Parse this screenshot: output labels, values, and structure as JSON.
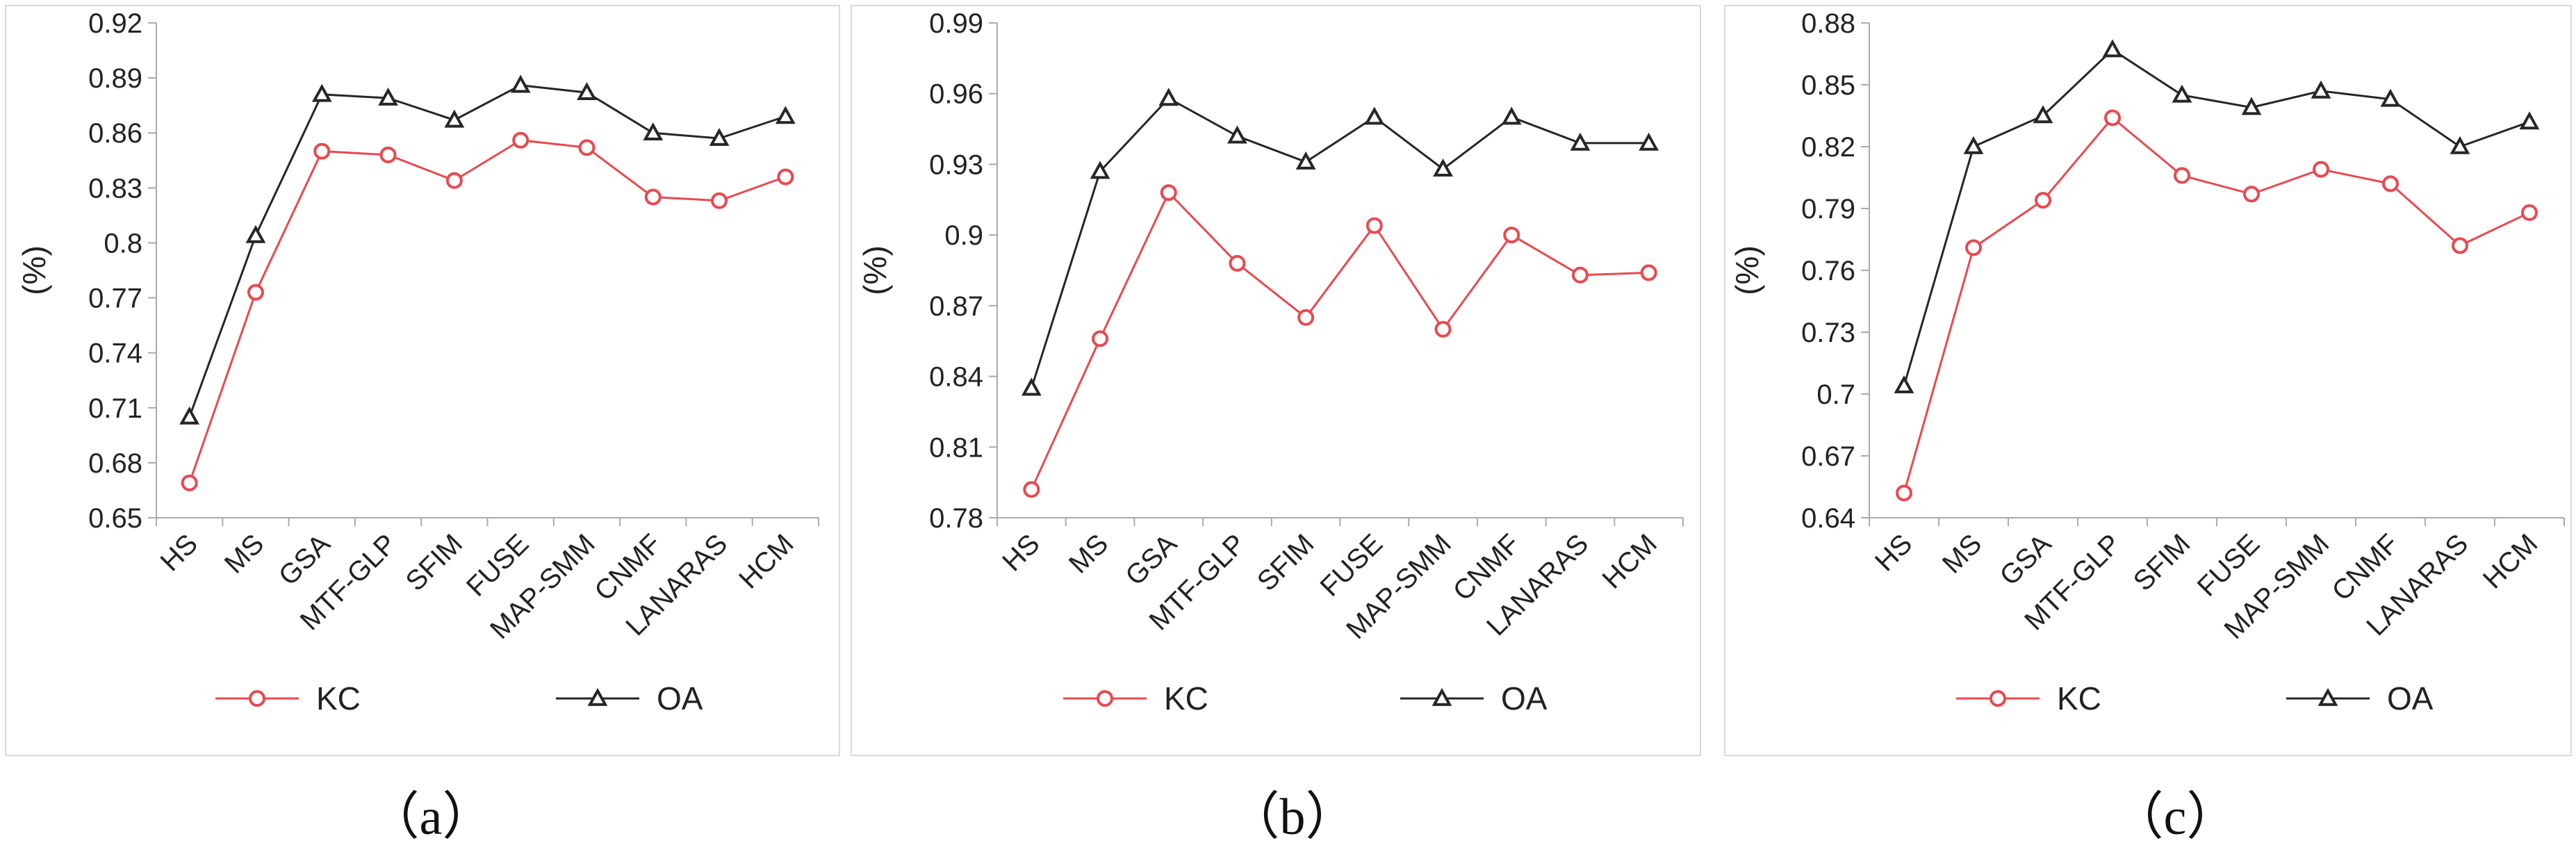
{
  "colors": {
    "KC": "#e8494f",
    "OA": "#262626",
    "axis": "#aaaaaa",
    "border": "#d9d9d9"
  },
  "chart_data": [
    {
      "type": "line",
      "caption": "（a）",
      "ylabel": "(%)",
      "xlabel": "",
      "categories": [
        "HS",
        "MS",
        "GSA",
        "MTF-GLP",
        "SFIM",
        "FUSE",
        "MAP-SMM",
        "CNMF",
        "LANARAS",
        "HCM"
      ],
      "ylim": [
        0.65,
        0.92
      ],
      "yticks": [
        0.65,
        0.68,
        0.71,
        0.74,
        0.77,
        0.8,
        0.83,
        0.86,
        0.89,
        0.92
      ],
      "ytick_labels": [
        "0.65",
        "0.68",
        "0.71",
        "0.74",
        "0.77",
        "0.8",
        "0.83",
        "0.86",
        "0.89",
        "0.92"
      ],
      "series": [
        {
          "name": "KC",
          "marker": "circle",
          "values": [
            0.669,
            0.773,
            0.85,
            0.848,
            0.834,
            0.856,
            0.852,
            0.825,
            0.823,
            0.836
          ]
        },
        {
          "name": "OA",
          "marker": "triangle",
          "values": [
            0.705,
            0.804,
            0.881,
            0.879,
            0.867,
            0.886,
            0.882,
            0.86,
            0.857,
            0.869
          ]
        }
      ]
    },
    {
      "type": "line",
      "caption": "（b）",
      "ylabel": "(%)",
      "xlabel": "",
      "categories": [
        "HS",
        "MS",
        "GSA",
        "MTF-GLP",
        "SFIM",
        "FUSE",
        "MAP-SMM",
        "CNMF",
        "LANARAS",
        "HCM"
      ],
      "ylim": [
        0.78,
        0.99
      ],
      "yticks": [
        0.78,
        0.81,
        0.84,
        0.87,
        0.9,
        0.93,
        0.96,
        0.99
      ],
      "ytick_labels": [
        "0.78",
        "0.81",
        "0.84",
        "0.87",
        "0.9",
        "0.93",
        "0.96",
        "0.99"
      ],
      "series": [
        {
          "name": "KC",
          "marker": "circle",
          "values": [
            0.792,
            0.856,
            0.918,
            0.888,
            0.865,
            0.904,
            0.86,
            0.9,
            0.883,
            0.884
          ]
        },
        {
          "name": "OA",
          "marker": "triangle",
          "values": [
            0.835,
            0.927,
            0.958,
            0.942,
            0.931,
            0.95,
            0.928,
            0.95,
            0.939,
            0.939
          ]
        }
      ]
    },
    {
      "type": "line",
      "caption": "（c）",
      "ylabel": "(%)",
      "xlabel": "",
      "categories": [
        "HS",
        "MS",
        "GSA",
        "MTF-GLP",
        "SFIM",
        "FUSE",
        "MAP-SMM",
        "CNMF",
        "LANARAS",
        "HCM"
      ],
      "ylim": [
        0.64,
        0.88
      ],
      "yticks": [
        0.64,
        0.67,
        0.7,
        0.73,
        0.76,
        0.79,
        0.82,
        0.85,
        0.88
      ],
      "ytick_labels": [
        "0.64",
        "0.67",
        "0.7",
        "0.73",
        "0.76",
        "0.79",
        "0.82",
        "0.85",
        "0.88"
      ],
      "series": [
        {
          "name": "KC",
          "marker": "circle",
          "values": [
            0.652,
            0.771,
            0.794,
            0.834,
            0.806,
            0.797,
            0.809,
            0.802,
            0.772,
            0.788
          ]
        },
        {
          "name": "OA",
          "marker": "triangle",
          "values": [
            0.704,
            0.82,
            0.835,
            0.867,
            0.845,
            0.839,
            0.847,
            0.843,
            0.82,
            0.832
          ]
        }
      ]
    }
  ]
}
